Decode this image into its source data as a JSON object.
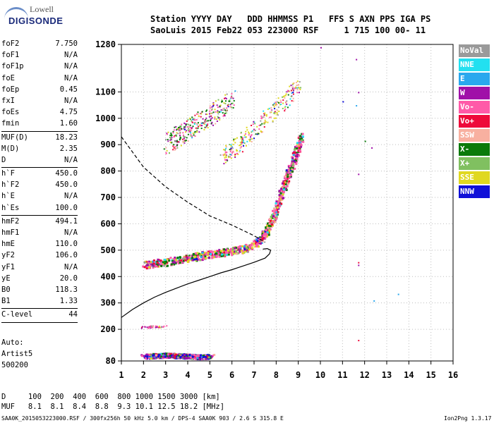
{
  "logo": {
    "line1": "Lowell",
    "line2": "DIGISONDE"
  },
  "header": {
    "line1": "Station YYYY DAY   DDD HHMMSS P1   FFS S AXN PPS IGA PS",
    "line2": "SaoLuis 2015 Feb22 053 223000 RSF     1 715 100 00- 11"
  },
  "params": {
    "group1": [
      {
        "label": "foF2",
        "value": "7.750"
      },
      {
        "label": "foF1",
        "value": "N/A"
      },
      {
        "label": "foF1p",
        "value": "N/A"
      },
      {
        "label": "foE",
        "value": "N/A"
      },
      {
        "label": "foEp",
        "value": "0.45"
      },
      {
        "label": "fxI",
        "value": "N/A"
      },
      {
        "label": "foEs",
        "value": "4.75"
      },
      {
        "label": "fmin",
        "value": "1.60"
      }
    ],
    "group2": [
      {
        "label": "MUF(D)",
        "value": "18.23"
      },
      {
        "label": "M(D)",
        "value": "2.35"
      },
      {
        "label": "D",
        "value": "N/A"
      }
    ],
    "group3": [
      {
        "label": "h`F",
        "value": "450.0"
      },
      {
        "label": "h`F2",
        "value": "450.0"
      },
      {
        "label": "h`E",
        "value": "N/A"
      },
      {
        "label": "h`Es",
        "value": "100.0"
      }
    ],
    "group4": [
      {
        "label": "hmF2",
        "value": "494.1"
      },
      {
        "label": "hmF1",
        "value": "N/A"
      },
      {
        "label": "hmE",
        "value": "110.0"
      },
      {
        "label": "yF2",
        "value": "106.0"
      },
      {
        "label": "yF1",
        "value": "N/A"
      },
      {
        "label": "yE",
        "value": "20.0"
      },
      {
        "label": "B0",
        "value": "118.3"
      },
      {
        "label": "B1",
        "value": "1.33"
      }
    ],
    "group5": [
      {
        "label": "C-level",
        "value": "44"
      }
    ]
  },
  "auto": {
    "line1": "Auto:",
    "line2": "Artist5",
    "line3": "500200"
  },
  "legend": [
    {
      "label": "NoVal",
      "color": "#9a9a9a"
    },
    {
      "label": "NNE",
      "color": "#22e0f0"
    },
    {
      "label": "E",
      "color": "#2aa8ee"
    },
    {
      "label": "W",
      "color": "#a010a8"
    },
    {
      "label": "Vo-",
      "color": "#ff5aa8"
    },
    {
      "label": "Vo+",
      "color": "#ee0a3a"
    },
    {
      "label": "SSW",
      "color": "#f8b0a0"
    },
    {
      "label": "X-",
      "color": "#0a7a0a"
    },
    {
      "label": "X+",
      "color": "#80c060"
    },
    {
      "label": "SSE",
      "color": "#e0d820"
    },
    {
      "label": "NNW",
      "color": "#1010d8"
    }
  ],
  "footer": {
    "line1": "D     100  200  400  600  800 1000 1500 3000 [km]",
    "line2": "MUF   8.1  8.1  8.4  8.8  9.3 10.1 12.5 18.2 [MHz]",
    "line3": "SAA0K_2015053223000.RSF / 300fx256h 50 kHz 5.0 km / DPS-4 SAA0K 903 / 2.6 S 315.8 E",
    "line4": "Ion2Png 1.3.17"
  },
  "chart_data": {
    "type": "scatter",
    "x": {
      "min": 1,
      "max": 16,
      "ticks": [
        1,
        2,
        3,
        4,
        5,
        6,
        7,
        8,
        9,
        10,
        11,
        12,
        13,
        14,
        15,
        16
      ]
    },
    "y": {
      "min": 80,
      "max": 1280,
      "ticks": [
        80,
        200,
        300,
        400,
        500,
        600,
        700,
        800,
        900,
        1000,
        1100,
        1280
      ]
    },
    "grid": true,
    "profile_solid": [
      [
        1.0,
        245
      ],
      [
        1.5,
        275
      ],
      [
        2.0,
        300
      ],
      [
        2.5,
        322
      ],
      [
        3.0,
        340
      ],
      [
        3.5,
        356
      ],
      [
        4.0,
        372
      ],
      [
        4.5,
        386
      ],
      [
        5.0,
        400
      ],
      [
        5.5,
        414
      ],
      [
        6.0,
        426
      ],
      [
        6.5,
        440
      ],
      [
        7.0,
        454
      ],
      [
        7.5,
        470
      ],
      [
        7.7,
        486
      ],
      [
        7.75,
        500
      ],
      [
        7.6,
        506
      ],
      [
        7.4,
        504
      ]
    ],
    "profile_dashed": [
      [
        1.0,
        930
      ],
      [
        2.0,
        815
      ],
      [
        3.0,
        740
      ],
      [
        4.0,
        682
      ],
      [
        5.0,
        630
      ],
      [
        6.0,
        595
      ],
      [
        7.0,
        555
      ],
      [
        7.5,
        530
      ]
    ],
    "traces": [
      {
        "name": "F2-O",
        "points": [
          [
            2.0,
            448
          ],
          [
            2.5,
            452
          ],
          [
            3.0,
            458
          ],
          [
            3.5,
            465
          ],
          [
            4.0,
            472
          ],
          [
            4.5,
            480
          ],
          [
            5.0,
            487
          ],
          [
            5.5,
            494
          ],
          [
            6.0,
            500
          ],
          [
            6.5,
            508
          ],
          [
            7.0,
            525
          ],
          [
            7.3,
            545
          ],
          [
            7.5,
            570
          ],
          [
            7.7,
            600
          ],
          [
            7.9,
            640
          ],
          [
            8.1,
            690
          ],
          [
            8.3,
            740
          ],
          [
            8.5,
            790
          ],
          [
            8.7,
            830
          ],
          [
            8.9,
            880
          ],
          [
            9.1,
            935
          ]
        ]
      },
      {
        "name": "F2-O-2",
        "points": [
          [
            5.5,
            850
          ],
          [
            6.0,
            880
          ],
          [
            6.5,
            920
          ],
          [
            7.0,
            960
          ],
          [
            7.5,
            1000
          ],
          [
            8.0,
            1040
          ],
          [
            8.5,
            1080
          ],
          [
            9.0,
            1130
          ]
        ]
      },
      {
        "name": "F2-2hop",
        "points": [
          [
            3.0,
            900
          ],
          [
            3.5,
            930
          ],
          [
            4.0,
            960
          ],
          [
            4.5,
            990
          ],
          [
            5.0,
            1010
          ],
          [
            5.5,
            1040
          ],
          [
            6.0,
            1080
          ]
        ]
      },
      {
        "name": "Es",
        "points": [
          [
            2.0,
            100
          ],
          [
            2.5,
            102
          ],
          [
            3.0,
            104
          ],
          [
            3.5,
            102
          ],
          [
            4.0,
            100
          ],
          [
            4.5,
            98
          ],
          [
            5.0,
            100
          ]
        ]
      },
      {
        "name": "Es-2",
        "points": [
          [
            2.0,
            210
          ],
          [
            2.5,
            212
          ],
          [
            3.0,
            212
          ]
        ]
      }
    ]
  }
}
